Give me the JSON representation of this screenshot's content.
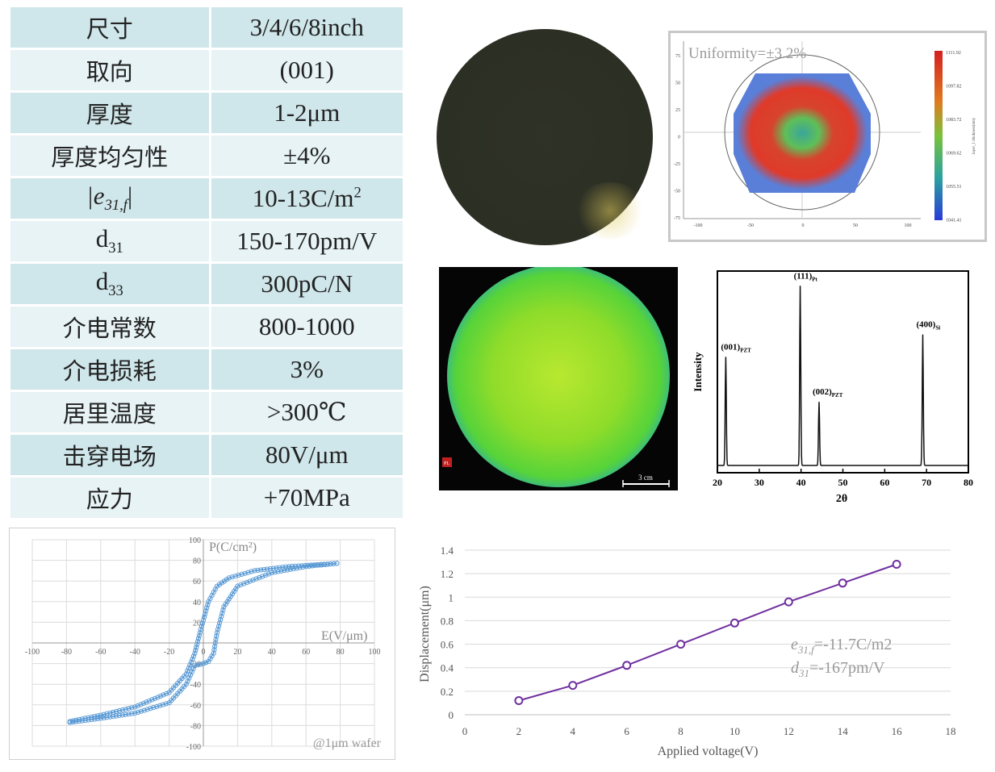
{
  "spec_table": [
    {
      "key": "尺寸",
      "value": "3/4/6/8inch"
    },
    {
      "key": "取向",
      "value": "(001)"
    },
    {
      "key": "厚度",
      "value": "1-2μm"
    },
    {
      "key": "厚度均匀性",
      "value": "±4%"
    },
    {
      "key_html": "|e31,f|",
      "key_main": "|e",
      "key_sub": "31,f",
      "key_tail": "|",
      "value_main": "10-13C/m",
      "value_sup": "2"
    },
    {
      "key_main": "d",
      "key_sub": "31",
      "value": "150-170pm/V"
    },
    {
      "key_main": "d",
      "key_sub": "33",
      "value": "300pC/N"
    },
    {
      "key": "介电常数",
      "value": "800-1000"
    },
    {
      "key": "介电损耗",
      "value": "3%"
    },
    {
      "key": "居里温度",
      "value": ">300℃"
    },
    {
      "key": "击穿电场",
      "value": "80V/μm"
    },
    {
      "key": "应力",
      "value": "+70MPa"
    }
  ],
  "uniformity": {
    "label": "Uniformity=±3.2%",
    "y_ticks": [
      "75",
      "50",
      "25",
      "0",
      "-25",
      "-50",
      "-75"
    ],
    "x_ticks": [
      "-100",
      "-50",
      "0",
      "50",
      "100"
    ],
    "colorbar_ticks": [
      "1111.92",
      "1097.82",
      "1083.72",
      "1069.62",
      "1055.51",
      "1041.41"
    ],
    "colorbar_label": "layer_1 thickness(nm)"
  },
  "pl_map": {
    "scale_label": "3 cm",
    "corner_label": "PL"
  },
  "colors": {
    "table_odd": "#cfe6ea",
    "table_even": "#e7f3f5",
    "hyst": "#5b9bd5",
    "disp": "#7030a0"
  },
  "chart_data": [
    {
      "type": "line",
      "id": "xrd",
      "xlabel": "2θ",
      "ylabel": "Intensity",
      "xlim": [
        20,
        80
      ],
      "x_ticks": [
        "20",
        "30",
        "40",
        "50",
        "60",
        "70",
        "80"
      ],
      "peaks": [
        {
          "x": 22.0,
          "label": "(001)",
          "sub": "PZT",
          "height": 0.58
        },
        {
          "x": 39.8,
          "label": "(111)",
          "sub": "Pt",
          "height": 0.96
        },
        {
          "x": 44.3,
          "label": "(002)",
          "sub": "PZT",
          "height": 0.34
        },
        {
          "x": 69.1,
          "label": "(400)",
          "sub": "Si",
          "height": 0.7
        }
      ]
    },
    {
      "type": "scatter",
      "id": "hysteresis",
      "xlabel": "E(V/μm)",
      "ylabel": "P(C/cm²)",
      "note": "@1μm wafer",
      "xlim": [
        -100,
        100
      ],
      "ylim": [
        -100,
        100
      ],
      "x_ticks": [
        "-100",
        "-80",
        "-60",
        "-40",
        "-20",
        "0",
        "20",
        "40",
        "60",
        "80",
        "100"
      ],
      "y_ticks": [
        "100",
        "80",
        "60",
        "40",
        "20",
        "0",
        "-20",
        "-40",
        "-60",
        "-80",
        "-100"
      ],
      "upper_branch": [
        [
          -78,
          -76
        ],
        [
          -60,
          -70
        ],
        [
          -40,
          -62
        ],
        [
          -20,
          -48
        ],
        [
          -10,
          -30
        ],
        [
          -5,
          -10
        ],
        [
          -2,
          10
        ],
        [
          0,
          22
        ],
        [
          3,
          40
        ],
        [
          8,
          55
        ],
        [
          15,
          63
        ],
        [
          30,
          70
        ],
        [
          50,
          74
        ],
        [
          78,
          77
        ]
      ],
      "lower_branch": [
        [
          78,
          77
        ],
        [
          60,
          74
        ],
        [
          40,
          68
        ],
        [
          20,
          55
        ],
        [
          12,
          35
        ],
        [
          8,
          10
        ],
        [
          6,
          -10
        ],
        [
          3,
          -18
        ],
        [
          0,
          -20
        ],
        [
          -5,
          -22
        ],
        [
          -10,
          -40
        ],
        [
          -20,
          -58
        ],
        [
          -40,
          -68
        ],
        [
          -60,
          -73
        ],
        [
          -78,
          -77
        ]
      ]
    },
    {
      "type": "line",
      "id": "displacement",
      "xlabel": "Applied voltage(V)",
      "ylabel": "Displacement(μm)",
      "xlim": [
        0,
        18
      ],
      "ylim": [
        0,
        1.4
      ],
      "x_ticks": [
        "0",
        "2",
        "4",
        "6",
        "8",
        "10",
        "12",
        "14",
        "16",
        "18"
      ],
      "y_ticks": [
        "1.4",
        "1.2",
        "1",
        "0.8",
        "0.6",
        "0.4",
        "0.2",
        "0"
      ],
      "x": [
        2,
        4,
        6,
        8,
        10,
        12,
        14,
        16
      ],
      "values": [
        0.12,
        0.25,
        0.42,
        0.6,
        0.78,
        0.96,
        1.12,
        1.28
      ],
      "annotation_e31": "=-11.7C/m2",
      "annotation_e31_sym": "e",
      "annotation_e31_sub": "31,f",
      "annotation_d31": "=-167pm/V",
      "annotation_d31_sym": "d",
      "annotation_d31_sub": "31"
    }
  ]
}
